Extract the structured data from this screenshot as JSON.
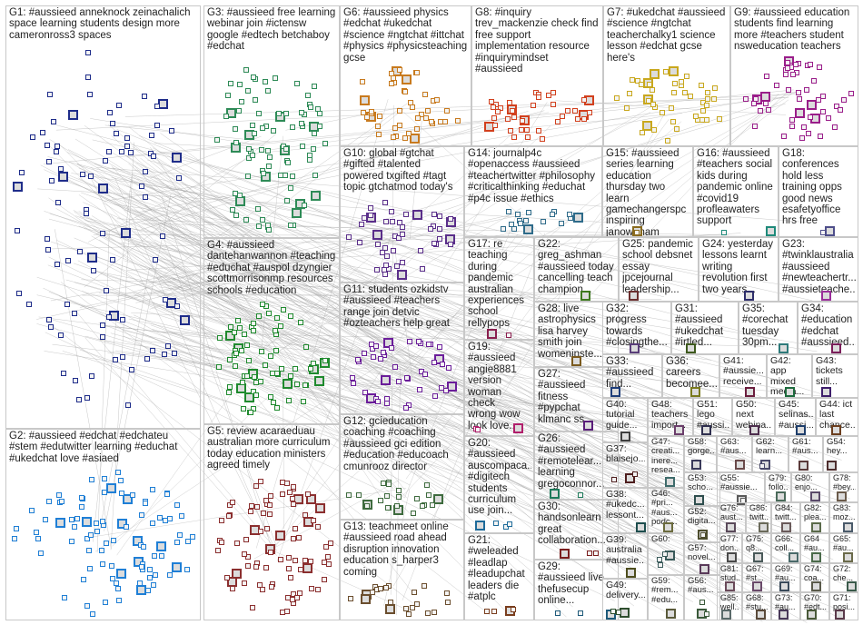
{
  "groups": [
    {
      "id": "G1",
      "label": "G1: #aussieed anneknock zeinachalich\nspace learning students design more\ncameronross3 spaces",
      "color": "#1f2d8a"
    },
    {
      "id": "G2",
      "label": "G2: #aussieed #edchat #edchateu\n#stem #edutwitter learning #educhat\n#ukedchat love #asiaed",
      "color": "#1f7fd6"
    },
    {
      "id": "G3",
      "label": "G3: #aussieed free learning\nwebinar join #ictensw\ngoogle #edtech betchaboy\n#edchat",
      "color": "#2e8b57"
    },
    {
      "id": "G4",
      "label": "G4: #aussieed\ndantehanwannon #teaching\n#educhat #auspol dzyngier\nscottmorrisonmp resources\nschools #education",
      "color": "#1f8a2e"
    },
    {
      "id": "G5",
      "label": "G5: review acaraeduau\naustralian more curriculum\ntoday education ministers\nagreed timely",
      "color": "#8b2f2f"
    },
    {
      "id": "G6",
      "label": "G6: #aussieed physics\n#edchat #ukedchat\n#science #ngtchat #ittchat\n#physics #physicsteaching\ngcse",
      "color": "#c87a1e"
    },
    {
      "id": "G7",
      "label": "G7: #ukedchat #aussieed\n#science #ngtchat\nteacherchalky1 science\nlesson #edchat gcse\nhere's",
      "color": "#c9a81e"
    },
    {
      "id": "G8",
      "label": "G8: #inquiry\ntrev_mackenzie check find\nfree support\nimplementation resource\n#inquirymindset\n#aussieed",
      "color": "#d2401e"
    },
    {
      "id": "G9",
      "label": "G9: #aussieed education\nstudents find learning\nmore #teachers student\nnsweducation teachers",
      "color": "#9a1e8a"
    },
    {
      "id": "G10",
      "label": "G10: global #gtchat\n#gifted #talented\npowered txgifted #tagt\ntopic gtchatmod today's",
      "color": "#5a2e8a"
    },
    {
      "id": "G11",
      "label": "G11: students ozkidstv\n#aussieed #teachers\nrange join detvic\n#ozteachers help great",
      "color": "#6b1e9a"
    },
    {
      "id": "G12",
      "label": "G12: gcieducation\ncoaching #coaching\n#aussieed gci edition\n#education #educoach\ncmunrooz director",
      "color": "#3e6b3e"
    },
    {
      "id": "G13",
      "label": "G13: teachmeet online\n#aussieed road ahead\ndisruption innovation\neducation s_harper3\ncoming",
      "color": "#6b4e2e"
    },
    {
      "id": "G14",
      "label": "G14: journalp4c\n#openaccess #aussieed\n#teachertwitter #philosophy\n#criticalthinking #educhat\n#p4c issue #ethics",
      "color": "#2e6b8a"
    },
    {
      "id": "G15",
      "label": "G15: #aussieed\nseries learning\neducation\nthursday two learn\ngamechangerspc\ninspiring\njanowenam",
      "color": "#8a6b1e"
    },
    {
      "id": "G16",
      "label": "G16: #aussieed\n#teachers social\nkids during\npandemic online\n#covid19\nprofleawaters\nsupport",
      "color": "#1e8a7a"
    },
    {
      "id": "G17",
      "label": "G17: re\nteaching\nduring\npandemic\naustralian\nexperiences\nschool\nrellypops",
      "color": "#8a1e4e"
    },
    {
      "id": "G18",
      "label": "G18:\nconferences\nhold less\ntraining opps\ngood news\nesafetyoffice\nhrs free",
      "color": "#4e4e8a"
    },
    {
      "id": "G19",
      "label": "G19:\n#aussieed\nangie8881\nversion\nwoman check\nwrong wow\nlook love...",
      "color": "#b01e6b"
    },
    {
      "id": "G20",
      "label": "G20:\n#aussieed\nauscompaca...\n#digitech\nstudents\ncurriculum\nuse join...",
      "color": "#1e6b9a"
    },
    {
      "id": "G21",
      "label": "G21:\n#weleaded\n#leadlap\n#leadupchat\nleaders die\n#atplc",
      "color": "#7a3e1e"
    },
    {
      "id": "G22",
      "label": "G22:\ngreg_ashman\n#aussieed today\ncancelling teach\nchampion...",
      "color": "#3e7a1e"
    },
    {
      "id": "G23",
      "label": "G23:\n#twinklaustralia\n#aussieed\n#newteachertr...\n#aussieteache...",
      "color": "#9a2e9a"
    },
    {
      "id": "G24",
      "label": "G24: yesterday\nlessons learnt\nwriting\nrevolution first\ntwo years...",
      "color": "#2e2e6b"
    },
    {
      "id": "G25",
      "label": "G25: pandemic\nschool debsnet\nessay\njpcejournal\nleadership...",
      "color": "#6b2e2e"
    },
    {
      "id": "G26",
      "label": "G26:\n#aussieed\n#remotelear...\nlearning\ngregoconnor...",
      "color": "#1e7a5a"
    },
    {
      "id": "G27",
      "label": "G27:\n#aussieed\nfitness\n#pypchat\nklmanc ss",
      "color": "#5a1e7a"
    },
    {
      "id": "G28",
      "label": "G28: live\nastrophysics\nlisa harvey\nsmith join\nwomeninste...",
      "color": "#7a5a1e"
    },
    {
      "id": "G29",
      "label": "G29:\n#aussieed live\nthefusecup\nonline...",
      "color": "#1e5a7a"
    },
    {
      "id": "G30",
      "label": "G30:\nhandsonlearn\ngreat\ncollaboration...",
      "color": "#7a1e1e"
    },
    {
      "id": "G31",
      "label": "G31:\n#aussieed\n#ukedchat\n#irtled...",
      "color": "#3e5a1e"
    },
    {
      "id": "G32",
      "label": "G32:\nprogress\ntowards\n#closingthe...",
      "color": "#5a3e7a"
    },
    {
      "id": "G33",
      "label": "G33:\n#aussieed\nfind...",
      "color": "#1e3e7a"
    },
    {
      "id": "G34",
      "label": "G34:\n#education\n#edchat\n#aussieed...",
      "color": "#7a1e5a"
    },
    {
      "id": "G35",
      "label": "G35:\n#corechat\ntuesday\n30pm...",
      "color": "#2e7a7a"
    },
    {
      "id": "G36",
      "label": "G36:\ncareers\nbecomee...",
      "color": "#7a7a1e"
    },
    {
      "id": "G37",
      "label": "G37:\nblaisejo...",
      "color": "#4e1e1e"
    },
    {
      "id": "G38",
      "label": "G38:\n#ukedc...\nlessont...",
      "color": "#1e4e4e"
    },
    {
      "id": "G39",
      "label": "G39:\naustralia\n#aussie...",
      "color": "#4e4e1e"
    },
    {
      "id": "G40",
      "label": "G40:\ntutorial\nguide...",
      "color": "#3e3e3e"
    },
    {
      "id": "G41",
      "label": "G41:\n#aussie...\nreceive...",
      "color": "#6b1e3e"
    },
    {
      "id": "G42",
      "label": "G42: app\nmixed\nmedia...",
      "color": "#1e6b3e"
    },
    {
      "id": "G43",
      "label": "G43:\ntickets\nstill...",
      "color": "#3e1e6b"
    },
    {
      "id": "G44",
      "label": "G44: ict\nlast\nchance...",
      "color": "#6b3e1e"
    },
    {
      "id": "G45",
      "label": "G45:\nselinas...\n#aussi...",
      "color": "#1e3e6b"
    },
    {
      "id": "G46",
      "label": "G46:\n#pri...\n#aus...\npodc...",
      "color": "#6b6b3e"
    },
    {
      "id": "G47",
      "label": "G47:\ncreati...\ninere...\nresea...",
      "color": "#3e6b6b"
    },
    {
      "id": "G48",
      "label": "G48:\nteachers\nimport...",
      "color": "#6b3e6b"
    },
    {
      "id": "G49",
      "label": "G49:\ndelivery...",
      "color": "#2e4e2e"
    },
    {
      "id": "G50",
      "label": "G50:\nnext\nwebina...",
      "color": "#4e2e4e"
    },
    {
      "id": "G51",
      "label": "G51:\nlego\n#aussi...",
      "color": "#2e2e4e"
    },
    {
      "id": "G52",
      "label": "G52:\ndigita...",
      "color": "#4e4e2e"
    },
    {
      "id": "G53",
      "label": "G53:\nscho...",
      "color": "#2e4e4e"
    },
    {
      "id": "G54",
      "label": "G54:\nhey...",
      "color": "#4e2e2e"
    },
    {
      "id": "G55",
      "label": "G55:\n#aussie...",
      "color": "#5a5a5a"
    },
    {
      "id": "G56",
      "label": "G56:\n#aus...",
      "color": "#3a5a3a"
    },
    {
      "id": "G57",
      "label": "G57:\nnovel...",
      "color": "#5a3a5a"
    },
    {
      "id": "G58",
      "label": "G58:\ngorge...",
      "color": "#3a3a5a"
    },
    {
      "id": "G59",
      "label": "G59:\n#rem...\n#edu...",
      "color": "#5a5a3a"
    },
    {
      "id": "G60",
      "label": "G60:",
      "color": "#3a5a5a"
    },
    {
      "id": "G61",
      "label": "G61:\n#aus...",
      "color": "#5a3a3a"
    },
    {
      "id": "G62",
      "label": "G62:\nlearn...",
      "color": "#4a4a6a"
    },
    {
      "id": "G63",
      "label": "G63:\n#aus...",
      "color": "#6a4a4a"
    },
    {
      "id": "G64",
      "label": "G64\n#au...",
      "color": "#4a6a4a"
    },
    {
      "id": "G65",
      "label": "G65:\n#au...",
      "color": "#6a6a4a"
    },
    {
      "id": "G66",
      "label": "G66:\ncoll...",
      "color": "#4a6a6a"
    },
    {
      "id": "G67",
      "label": "G67:\n#st...",
      "color": "#6a4a6a"
    },
    {
      "id": "G68",
      "label": "G68:\n#stu...",
      "color": "#5a4a3a"
    },
    {
      "id": "G69",
      "label": "G69:\n#au...",
      "color": "#3a4a5a"
    },
    {
      "id": "G70",
      "label": "G70:\n#edt...",
      "color": "#4a5a3a"
    },
    {
      "id": "G71",
      "label": "G71:\nposi...",
      "color": "#5a3a4a"
    },
    {
      "id": "G72",
      "label": "G72:\nche...",
      "color": "#3a5a4a"
    },
    {
      "id": "G73",
      "label": "G73:\n#au...",
      "color": "#4a3a5a"
    },
    {
      "id": "G74",
      "label": "G74:\ncoa...",
      "color": "#5a5a4a"
    },
    {
      "id": "G75",
      "label": "G75:\nq8...",
      "color": "#4a5a5a"
    },
    {
      "id": "G76",
      "label": "G76:\naust...",
      "color": "#5a4a5a"
    },
    {
      "id": "G77",
      "label": "G77:\ndon...",
      "color": "#4a4a4a"
    },
    {
      "id": "G78",
      "label": "G78:\n#bey...",
      "color": "#6a5a4a"
    },
    {
      "id": "G79",
      "label": "G79:\nfollo...",
      "color": "#4a6a5a"
    },
    {
      "id": "G80",
      "label": "G80:\nenjo...",
      "color": "#5a4a6a"
    },
    {
      "id": "G81",
      "label": "G81:\nstud...",
      "color": "#6a4a5a"
    },
    {
      "id": "G82",
      "label": "G82:\nplea...",
      "color": "#5a6a4a"
    },
    {
      "id": "G83",
      "label": "G83:\nmoz...",
      "color": "#4a5a6a"
    },
    {
      "id": "G84",
      "label": "G84:\ntwitt...",
      "color": "#6a5a5a"
    },
    {
      "id": "G85",
      "label": "G85:\nwell...",
      "color": "#5a6a6a"
    },
    {
      "id": "G86",
      "label": "G86:\ntwitt...",
      "color": "#6a6a5a"
    }
  ]
}
